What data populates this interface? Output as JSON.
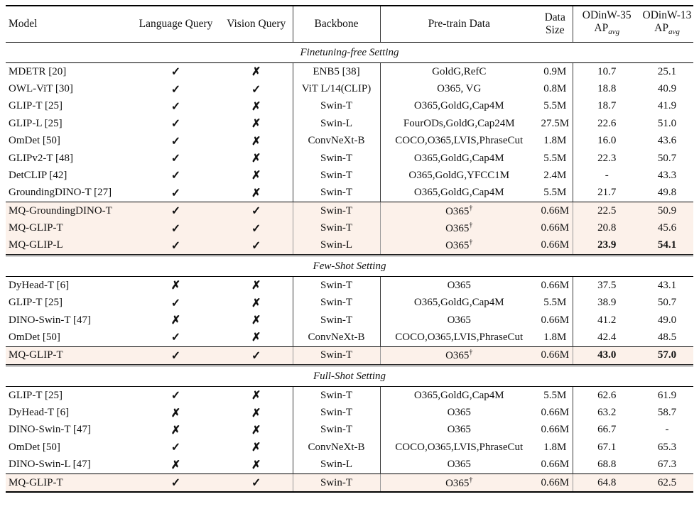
{
  "colors": {
    "highlight_bg": "#fcf1ea",
    "rule": "#000000",
    "text": "#111111"
  },
  "icons": {
    "check": "✓",
    "cross": "✗",
    "dagger": "†"
  },
  "header": {
    "model": "Model",
    "language_query": "Language Query",
    "vision_query": "Vision Query",
    "backbone": "Backbone",
    "pretrain": "Pre-train Data",
    "data_size_line1": "Data",
    "data_size_line2": "Size",
    "odinw35": "ODinW-35",
    "odinw13": "ODinW-13",
    "ap_label": "AP",
    "ap_sub": "avg"
  },
  "sections": [
    {
      "title": "Finetuning-free Setting",
      "rows": [
        {
          "model": "MDETR [20]",
          "lang": "check",
          "vision": "cross",
          "backbone": "ENB5 [38]",
          "pretrain": "GoldG,RefC",
          "size": "0.9M",
          "ap35": "10.7",
          "ap13": "25.1"
        },
        {
          "model": "OWL-ViT [30]",
          "lang": "check",
          "vision": "check",
          "backbone": "ViT L/14(CLIP)",
          "pretrain": "O365, VG",
          "size": "0.8M",
          "ap35": "18.8",
          "ap13": "40.9"
        },
        {
          "model": "GLIP-T [25]",
          "lang": "check",
          "vision": "cross",
          "backbone": "Swin-T",
          "pretrain": "O365,GoldG,Cap4M",
          "size": "5.5M",
          "ap35": "18.7",
          "ap13": "41.9"
        },
        {
          "model": "GLIP-L [25]",
          "lang": "check",
          "vision": "cross",
          "backbone": "Swin-L",
          "pretrain": "FourODs,GoldG,Cap24M",
          "size": "27.5M",
          "ap35": "22.6",
          "ap13": "51.0"
        },
        {
          "model": "OmDet [50]",
          "lang": "check",
          "vision": "cross",
          "backbone": "ConvNeXt-B",
          "pretrain": "COCO,O365,LVIS,PhraseCut",
          "size": "1.8M",
          "ap35": "16.0",
          "ap13": "43.6"
        },
        {
          "model": "GLIPv2-T [48]",
          "lang": "check",
          "vision": "cross",
          "backbone": "Swin-T",
          "pretrain": "O365,GoldG,Cap4M",
          "size": "5.5M",
          "ap35": "22.3",
          "ap13": "50.7"
        },
        {
          "model": "DetCLIP [42]",
          "lang": "check",
          "vision": "cross",
          "backbone": "Swin-T",
          "pretrain": "O365,GoldG,YFCC1M",
          "size": "2.4M",
          "ap35": "-",
          "ap13": "43.3"
        },
        {
          "model": "GroundingDINO-T [27]",
          "lang": "check",
          "vision": "cross",
          "backbone": "Swin-T",
          "pretrain": "O365,GoldG,Cap4M",
          "size": "5.5M",
          "ap35": "21.7",
          "ap13": "49.8"
        }
      ],
      "highlight_rows": [
        {
          "model": "MQ-GroundingDINO-T",
          "lang": "check",
          "vision": "check",
          "backbone": "Swin-T",
          "pretrain": "O365†",
          "size": "0.66M",
          "ap35": "22.5",
          "ap13": "50.9"
        },
        {
          "model": "MQ-GLIP-T",
          "lang": "check",
          "vision": "check",
          "backbone": "Swin-T",
          "pretrain": "O365†",
          "size": "0.66M",
          "ap35": "20.8",
          "ap13": "45.6"
        },
        {
          "model": "MQ-GLIP-L",
          "lang": "check",
          "vision": "check",
          "backbone": "Swin-L",
          "pretrain": "O365†",
          "size": "0.66M",
          "ap35": "23.9",
          "ap13": "54.1",
          "bold_ap": true
        }
      ]
    },
    {
      "title": "Few-Shot Setting",
      "rows": [
        {
          "model": "DyHead-T [6]",
          "lang": "cross",
          "vision": "cross",
          "backbone": "Swin-T",
          "pretrain": "O365",
          "size": "0.66M",
          "ap35": "37.5",
          "ap13": "43.1"
        },
        {
          "model": "GLIP-T [25]",
          "lang": "check",
          "vision": "cross",
          "backbone": "Swin-T",
          "pretrain": "O365,GoldG,Cap4M",
          "size": "5.5M",
          "ap35": "38.9",
          "ap13": "50.7"
        },
        {
          "model": "DINO-Swin-T [47]",
          "lang": "cross",
          "vision": "cross",
          "backbone": "Swin-T",
          "pretrain": "O365",
          "size": "0.66M",
          "ap35": "41.2",
          "ap13": "49.0"
        },
        {
          "model": "OmDet [50]",
          "lang": "check",
          "vision": "cross",
          "backbone": "ConvNeXt-B",
          "pretrain": "COCO,O365,LVIS,PhraseCut",
          "size": "1.8M",
          "ap35": "42.4",
          "ap13": "48.5"
        }
      ],
      "highlight_rows": [
        {
          "model": "MQ-GLIP-T",
          "lang": "check",
          "vision": "check",
          "backbone": "Swin-T",
          "pretrain": "O365†",
          "size": "0.66M",
          "ap35": "43.0",
          "ap13": "57.0",
          "bold_ap": true
        }
      ]
    },
    {
      "title": "Full-Shot Setting",
      "rows": [
        {
          "model": "GLIP-T [25]",
          "lang": "check",
          "vision": "cross",
          "backbone": "Swin-T",
          "pretrain": "O365,GoldG,Cap4M",
          "size": "5.5M",
          "ap35": "62.6",
          "ap13": "61.9"
        },
        {
          "model": "DyHead-T [6]",
          "lang": "cross",
          "vision": "cross",
          "backbone": "Swin-T",
          "pretrain": "O365",
          "size": "0.66M",
          "ap35": "63.2",
          "ap13": "58.7"
        },
        {
          "model": "DINO-Swin-T [47]",
          "lang": "cross",
          "vision": "cross",
          "backbone": "Swin-T",
          "pretrain": "O365",
          "size": "0.66M",
          "ap35": "66.7",
          "ap13": "-"
        },
        {
          "model": "OmDet [50]",
          "lang": "check",
          "vision": "cross",
          "backbone": "ConvNeXt-B",
          "pretrain": "COCO,O365,LVIS,PhraseCut",
          "size": "1.8M",
          "ap35": "67.1",
          "ap13": "65.3"
        },
        {
          "model": "DINO-Swin-L [47]",
          "lang": "cross",
          "vision": "cross",
          "backbone": "Swin-L",
          "pretrain": "O365",
          "size": "0.66M",
          "ap35": "68.8",
          "ap13": "67.3"
        }
      ],
      "highlight_rows": [
        {
          "model": "MQ-GLIP-T",
          "lang": "check",
          "vision": "check",
          "backbone": "Swin-T",
          "pretrain": "O365†",
          "size": "0.66M",
          "ap35": "64.8",
          "ap13": "62.5"
        }
      ]
    }
  ]
}
